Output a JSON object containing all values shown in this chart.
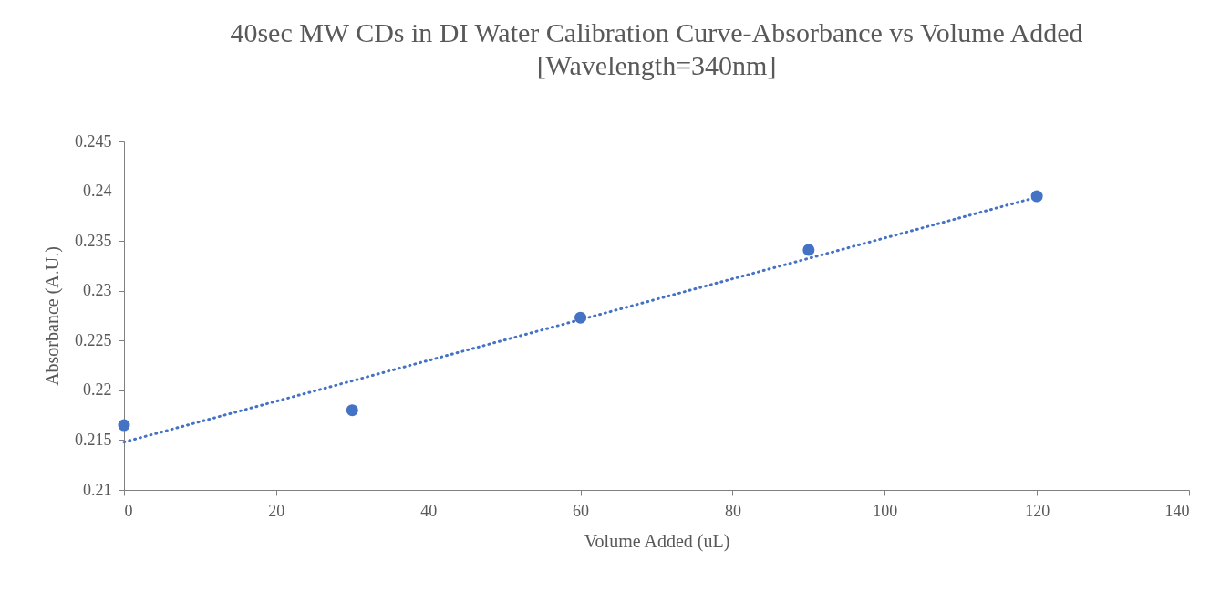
{
  "chart_data": {
    "type": "scatter",
    "title": "40sec MW CDs in DI Water Calibration Curve-Absorbance vs Volume Added\n[Wavelength=340nm]",
    "xlabel": "Volume Added (uL)",
    "ylabel": "Absorbance (A.U.)",
    "series": [
      {
        "color": "#4472c4",
        "marker": "circle",
        "x": [
          0,
          30,
          60,
          90,
          120
        ],
        "values": [
          0.2165,
          0.218,
          0.2273,
          0.2341,
          0.2395
        ]
      },
      {
        "type": "line",
        "color": "#4472c4",
        "marker": "none",
        "line_style": "dotted",
        "x": [
          0,
          120
        ],
        "values": [
          0.2148,
          0.2394
        ]
      }
    ],
    "xlim": [
      0,
      140
    ],
    "xticks": [
      0,
      20,
      40,
      60,
      80,
      100,
      120,
      140
    ],
    "ylim": [
      0.21,
      0.245
    ],
    "yticks": [
      0.21,
      0.215,
      0.22,
      0.225,
      0.23,
      0.235,
      0.24,
      0.245
    ],
    "grid": false
  }
}
